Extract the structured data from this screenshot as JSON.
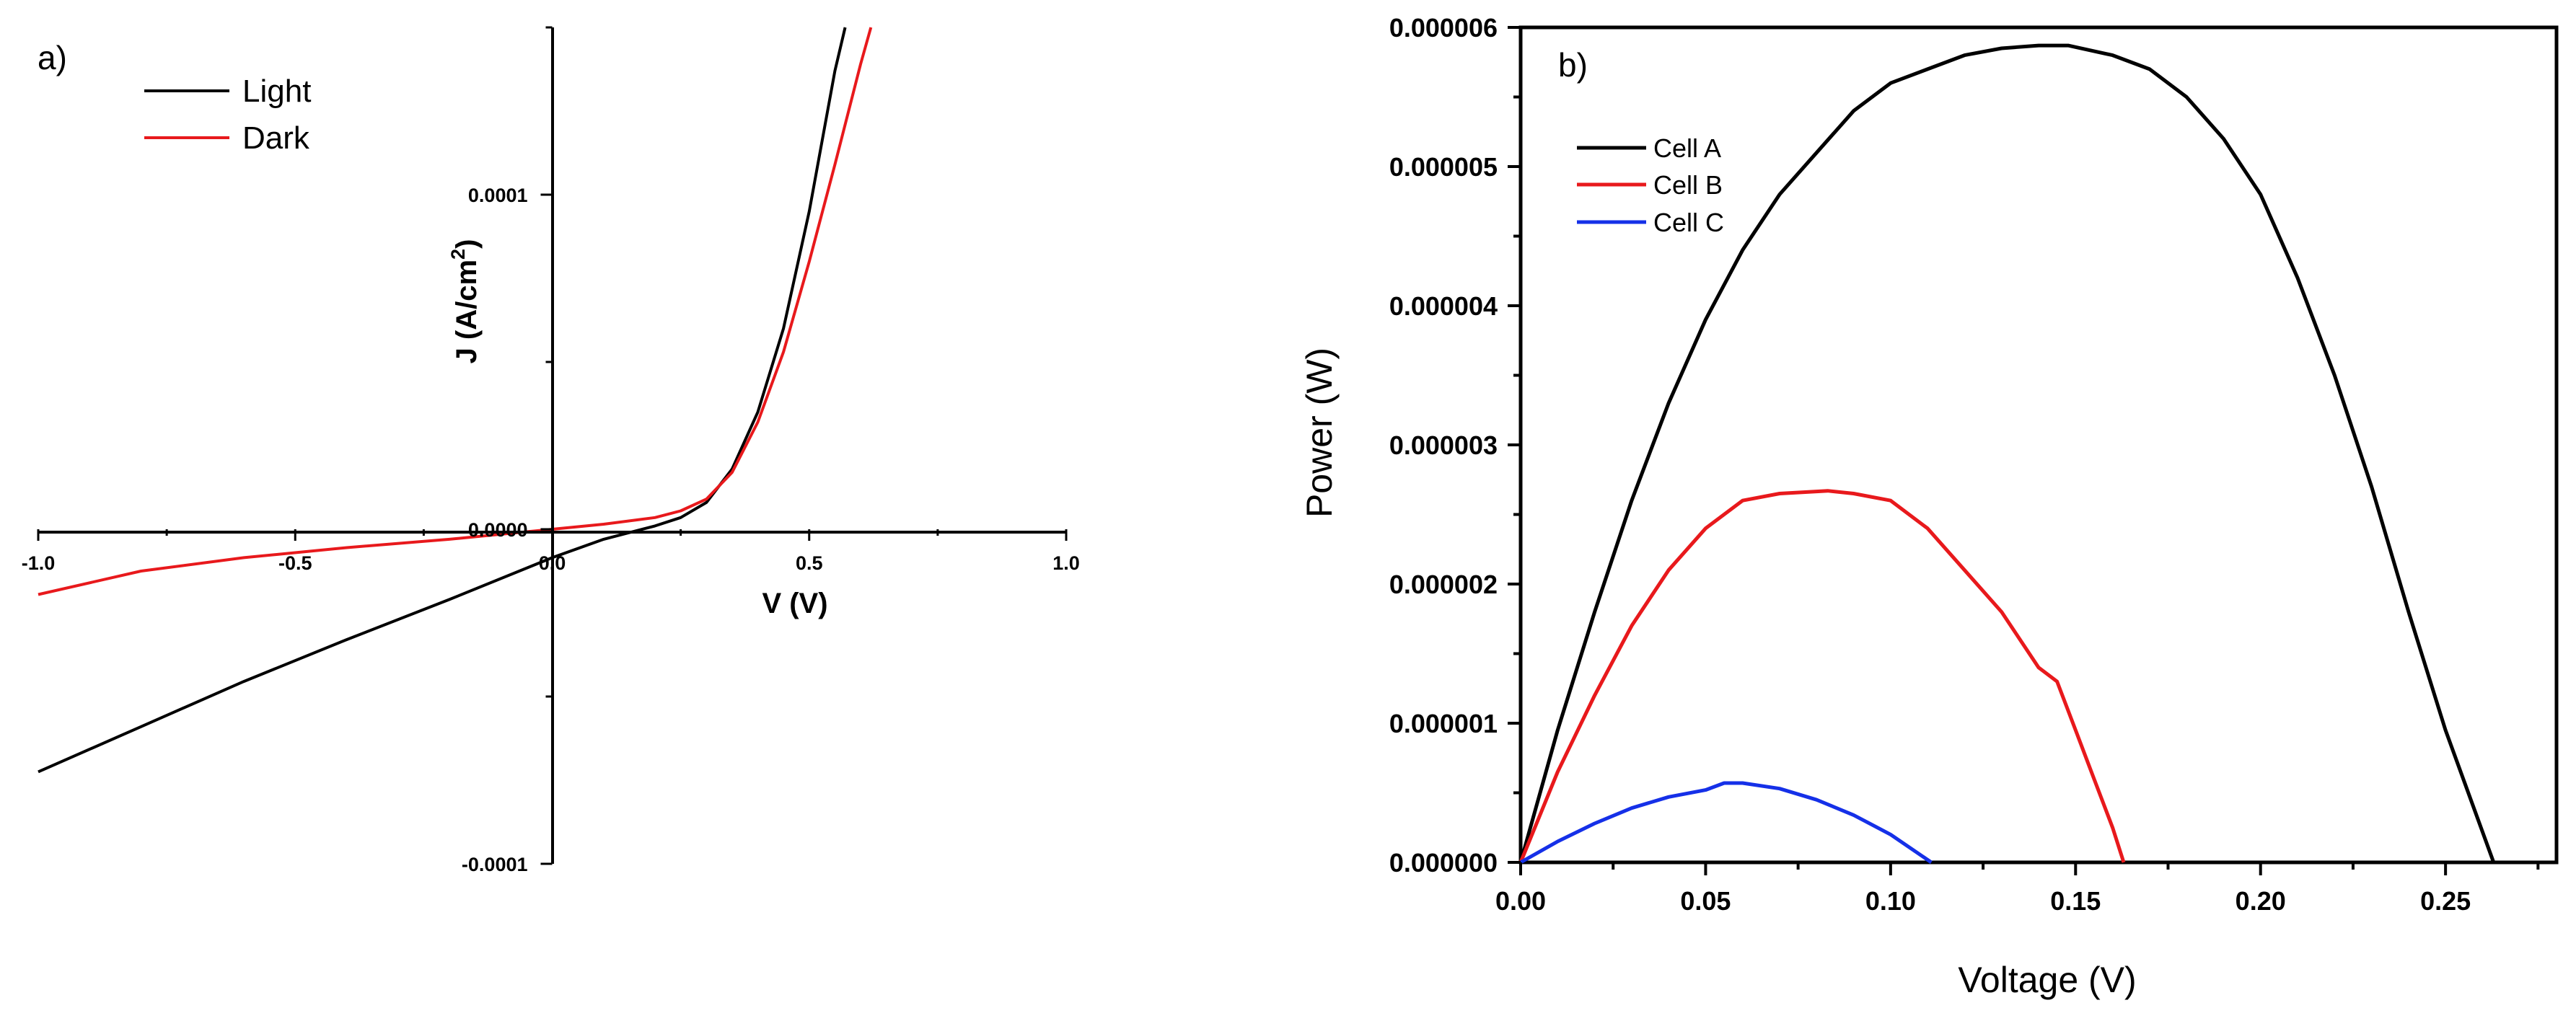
{
  "chart_data": [
    {
      "type": "line",
      "panel_label": "a)",
      "xlabel": "V (V)",
      "ylabel": "J (A/cm",
      "ylabel_sup": "2",
      "ylabel_close": ")",
      "xlim": [
        -1.0,
        1.0
      ],
      "ylim": [
        -0.0001,
        0.00015
      ],
      "x_ticks": [
        {
          "value": -1.0,
          "label": "-1.0"
        },
        {
          "value": -0.5,
          "label": "-0.5"
        },
        {
          "value": 0.0,
          "label": "0.0"
        },
        {
          "value": 0.5,
          "label": "0.5"
        },
        {
          "value": 1.0,
          "label": "1.0"
        }
      ],
      "y_ticks": [
        {
          "value": 0.0001,
          "label": "0.0001"
        },
        {
          "value": 0.0,
          "label": "0.0000"
        },
        {
          "value": -0.0001,
          "label": "-0.0001"
        }
      ],
      "legend_position": "top-left",
      "series": [
        {
          "name": "Light",
          "color": "#000000",
          "x": [
            -1.0,
            -0.8,
            -0.6,
            -0.4,
            -0.2,
            0.0,
            0.1,
            0.2,
            0.25,
            0.3,
            0.35,
            0.4,
            0.45,
            0.5,
            0.55,
            0.57
          ],
          "y": [
            -7.25e-05,
            -5.9e-05,
            -4.55e-05,
            -3.3e-05,
            -2.1e-05,
            -8.5e-06,
            -3e-06,
            1e-06,
            3.5e-06,
            8e-06,
            1.8e-05,
            3.5e-05,
            6e-05,
            9.5e-05,
            0.000137,
            0.00015
          ]
        },
        {
          "name": "Dark",
          "color": "#e8191c",
          "x": [
            -1.0,
            -0.8,
            -0.6,
            -0.4,
            -0.2,
            0.0,
            0.1,
            0.2,
            0.25,
            0.3,
            0.35,
            0.4,
            0.45,
            0.5,
            0.55,
            0.6,
            0.62
          ],
          "y": [
            -1.95e-05,
            -1.25e-05,
            -8.5e-06,
            -5.5e-06,
            -3e-06,
            0.0,
            1.5e-06,
            3.5e-06,
            5.5e-06,
            9e-06,
            1.7e-05,
            3.2e-05,
            5.3e-05,
            8e-05,
            0.000109,
            0.000139,
            0.00015
          ]
        }
      ]
    },
    {
      "type": "line",
      "panel_label": "b)",
      "xlabel": "Voltage (V)",
      "ylabel": "Power (W)",
      "xlim": [
        0.0,
        0.28
      ],
      "ylim": [
        0.0,
        6e-06
      ],
      "x_ticks": [
        {
          "value": 0.0,
          "label": "0.00"
        },
        {
          "value": 0.05,
          "label": "0.05"
        },
        {
          "value": 0.1,
          "label": "0.10"
        },
        {
          "value": 0.15,
          "label": "0.15"
        },
        {
          "value": 0.2,
          "label": "0.20"
        },
        {
          "value": 0.25,
          "label": "0.25"
        }
      ],
      "y_ticks": [
        {
          "value": 0.0,
          "label": "0.000000"
        },
        {
          "value": 1e-06,
          "label": "0.000001"
        },
        {
          "value": 2e-06,
          "label": "0.000002"
        },
        {
          "value": 3e-06,
          "label": "0.000003"
        },
        {
          "value": 4e-06,
          "label": "0.000004"
        },
        {
          "value": 5e-06,
          "label": "0.000005"
        },
        {
          "value": 6e-06,
          "label": "0.000006"
        }
      ],
      "legend_position": "top-left",
      "series": [
        {
          "name": "Cell A",
          "color": "#000000",
          "x": [
            0.0,
            0.01,
            0.02,
            0.03,
            0.04,
            0.05,
            0.06,
            0.07,
            0.08,
            0.09,
            0.1,
            0.11,
            0.12,
            0.13,
            0.14,
            0.148,
            0.16,
            0.17,
            0.18,
            0.19,
            0.2,
            0.21,
            0.22,
            0.23,
            0.24,
            0.25,
            0.263
          ],
          "y": [
            0.0,
            9.5e-07,
            1.8e-06,
            2.6e-06,
            3.3e-06,
            3.9e-06,
            4.4e-06,
            4.8e-06,
            5.1e-06,
            5.4e-06,
            5.6e-06,
            5.7e-06,
            5.8e-06,
            5.85e-06,
            5.87e-06,
            5.87e-06,
            5.8e-06,
            5.7e-06,
            5.5e-06,
            5.2e-06,
            4.8e-06,
            4.2e-06,
            3.5e-06,
            2.7e-06,
            1.8e-06,
            9.5e-07,
            0.0
          ]
        },
        {
          "name": "Cell B",
          "color": "#e8191c",
          "x": [
            0.0,
            0.01,
            0.02,
            0.03,
            0.04,
            0.05,
            0.06,
            0.07,
            0.083,
            0.09,
            0.1,
            0.11,
            0.12,
            0.13,
            0.14,
            0.145,
            0.15,
            0.155,
            0.16,
            0.163
          ],
          "y": [
            0.0,
            6.5e-07,
            1.2e-06,
            1.7e-06,
            2.1e-06,
            2.4e-06,
            2.6e-06,
            2.65e-06,
            2.67e-06,
            2.65e-06,
            2.6e-06,
            2.4e-06,
            2.1e-06,
            1.8e-06,
            1.4e-06,
            1.3e-06,
            9.5e-07,
            6e-07,
            2.5e-07,
            0.0
          ]
        },
        {
          "name": "Cell C",
          "color": "#1530e8",
          "x": [
            0.0,
            0.01,
            0.02,
            0.03,
            0.04,
            0.05,
            0.055,
            0.06,
            0.07,
            0.08,
            0.09,
            0.1,
            0.111
          ],
          "y": [
            0.0,
            1.5e-07,
            2.8e-07,
            3.9e-07,
            4.7e-07,
            5.2e-07,
            5.7e-07,
            5.7e-07,
            5.3e-07,
            4.5e-07,
            3.4e-07,
            2e-07,
            0.0
          ]
        }
      ]
    }
  ]
}
